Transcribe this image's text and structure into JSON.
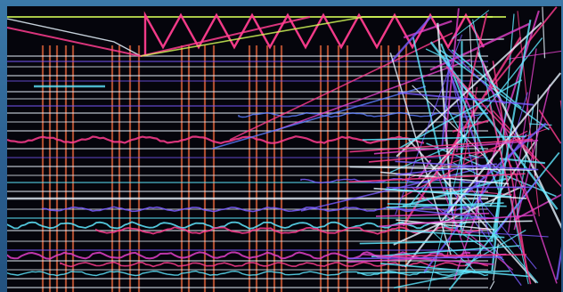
{
  "artwork": {
    "palette": {
      "background": "#05050c",
      "frame": "#2f5f8c",
      "pink": "#ff3d8f",
      "magenta": "#e040c8",
      "violet": "#7a5cff",
      "blue": "#5c7dff",
      "cyan": "#5fe8ff",
      "white": "#e8f4ff",
      "lime": "#d8ff5a",
      "orange": "#e0633a"
    }
  }
}
